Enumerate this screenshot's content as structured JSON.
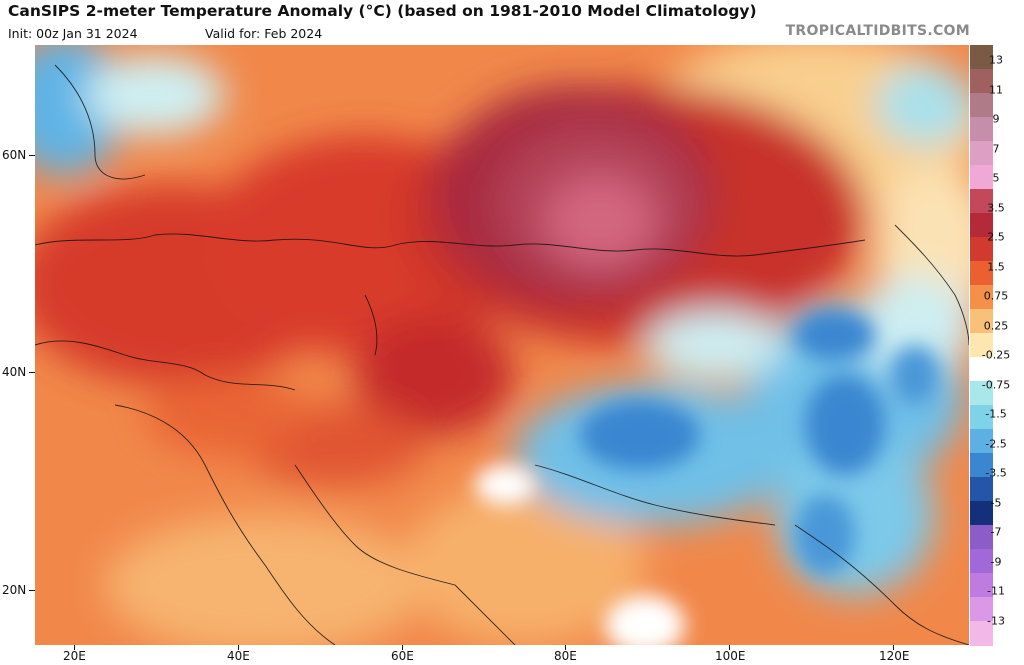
{
  "header": {
    "title": "CanSIPS 2-meter Temperature Anomaly (°C) (based on 1981-2010 Model Climatology)",
    "init": "Init: 00z Jan 31 2024",
    "valid": "Valid for: Feb 2024",
    "brand": "TROPICALTIDBITS.COM"
  },
  "axes": {
    "lat_labels": [
      "60N",
      "40N",
      "20N"
    ],
    "lon_labels": [
      "20E",
      "40E",
      "60E",
      "80E",
      "100E",
      "120E"
    ]
  },
  "colorbar": {
    "labels": [
      "13",
      "11",
      "9",
      "7",
      "5",
      "3.5",
      "2.5",
      "1.5",
      "0.75",
      "0.25",
      "-0.25",
      "-0.75",
      "-1.5",
      "-2.5",
      "-3.5",
      "-5",
      "-7",
      "-9",
      "-11",
      "-13"
    ],
    "colors": [
      "#7a5a44",
      "#a0605f",
      "#b07a88",
      "#c78eab",
      "#dd9fc4",
      "#f0a9d6",
      "#c2485a",
      "#b42a38",
      "#d13a2e",
      "#ea6030",
      "#f4904a",
      "#f9c07a",
      "#fde6b0",
      "#ffffff",
      "#a8e7ea",
      "#7fd3e9",
      "#5cb0e4",
      "#3b86d0",
      "#2356a8",
      "#14307a",
      "#8c5cc9",
      "#a068d8",
      "#c07be0",
      "#db98e6",
      "#f2b8e8"
    ]
  }
}
